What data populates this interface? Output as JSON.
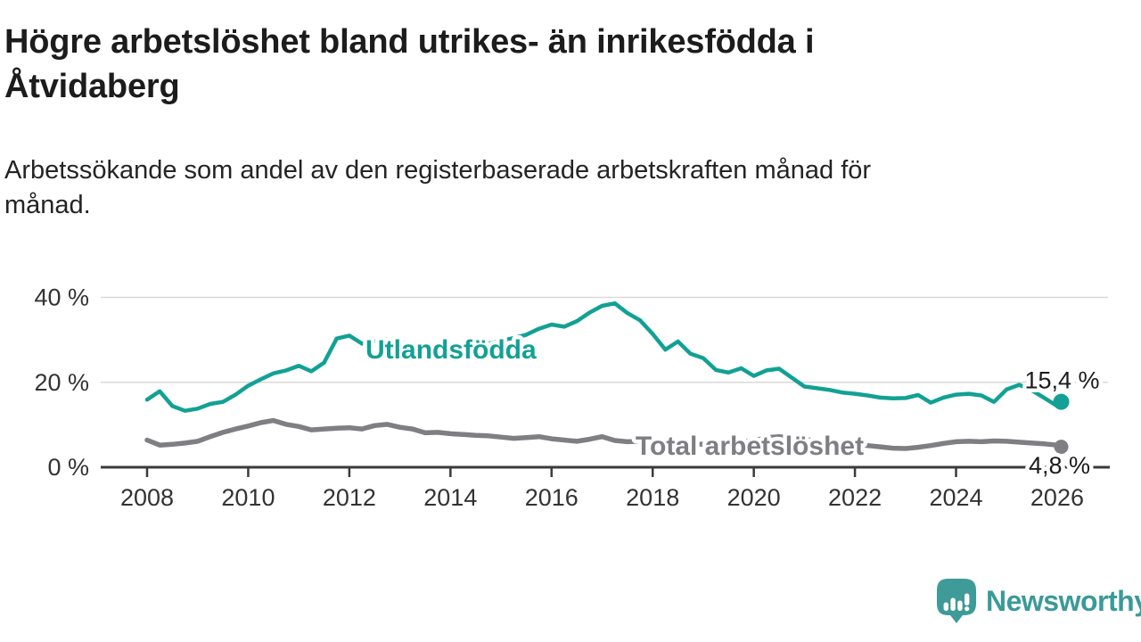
{
  "header": {
    "title_lines": [
      "Högre arbetslöshet bland utrikes- än inrikesfödda i",
      "Åtvidaberg"
    ],
    "subtitle_lines": [
      "Arbetssökande som andel av den registerbaserade arbetskraften månad för",
      "månad."
    ]
  },
  "chart_data": {
    "type": "line",
    "title": "Högre arbetslöshet bland utrikes- än inrikesfödda i Åtvidaberg",
    "subtitle": "Arbetssökande som andel av den registerbaserade arbetskraften månad för månad.",
    "unit": "%",
    "grid": "horizontal-only",
    "legend": "inline-labels-on-lines",
    "x_axis": {
      "ticks": [
        2008,
        2010,
        2012,
        2014,
        2016,
        2018,
        2020,
        2022,
        2024,
        2026
      ],
      "range": [
        2007.1,
        2027.0
      ]
    },
    "y_axis": {
      "ticks": [
        {
          "value": 0,
          "label": "0 %"
        },
        {
          "value": 20,
          "label": "20 %"
        },
        {
          "value": 40,
          "label": "40 %"
        }
      ],
      "range": [
        0,
        42
      ]
    },
    "colors": {
      "axis": "#3b3b3b",
      "gridline": "#d9d9d9",
      "tick_text": "#333333",
      "end_label_text": "#1b1b1b"
    },
    "series": [
      {
        "name": "Utlandsfödda",
        "color": "#12a194",
        "label": {
          "text": "Utlandsfödda",
          "anchor_year": 2012.32,
          "anchor_value": 27.7
        },
        "end_label": "15,4 %",
        "end_value": 15.4,
        "points": [
          [
            2008.0,
            15.9
          ],
          [
            2008.25,
            17.9
          ],
          [
            2008.5,
            14.4
          ],
          [
            2008.75,
            13.3
          ],
          [
            2009.0,
            13.8
          ],
          [
            2009.25,
            14.9
          ],
          [
            2009.5,
            15.4
          ],
          [
            2009.75,
            17.1
          ],
          [
            2010.0,
            19.2
          ],
          [
            2010.25,
            20.7
          ],
          [
            2010.5,
            22.1
          ],
          [
            2010.75,
            22.8
          ],
          [
            2011.0,
            23.9
          ],
          [
            2011.25,
            22.6
          ],
          [
            2011.5,
            24.6
          ],
          [
            2011.75,
            30.3
          ],
          [
            2012.0,
            31.0
          ],
          [
            2012.25,
            29.1
          ],
          [
            2012.5,
            29.7
          ],
          [
            2012.75,
            30.2
          ],
          [
            2013.0,
            29.4
          ],
          [
            2013.25,
            28.9
          ],
          [
            2013.5,
            28.4
          ],
          [
            2013.75,
            28.0
          ],
          [
            2014.0,
            27.8
          ],
          [
            2014.25,
            28.1
          ],
          [
            2014.5,
            28.6
          ],
          [
            2014.75,
            29.1
          ],
          [
            2015.0,
            29.8
          ],
          [
            2015.25,
            30.4
          ],
          [
            2015.5,
            31.2
          ],
          [
            2015.75,
            32.6
          ],
          [
            2016.0,
            33.6
          ],
          [
            2016.25,
            33.1
          ],
          [
            2016.5,
            34.4
          ],
          [
            2016.75,
            36.4
          ],
          [
            2017.0,
            38.0
          ],
          [
            2017.25,
            38.6
          ],
          [
            2017.5,
            36.3
          ],
          [
            2017.75,
            34.6
          ],
          [
            2018.0,
            31.4
          ],
          [
            2018.25,
            27.7
          ],
          [
            2018.5,
            29.6
          ],
          [
            2018.75,
            26.7
          ],
          [
            2019.0,
            25.7
          ],
          [
            2019.25,
            22.9
          ],
          [
            2019.5,
            22.3
          ],
          [
            2019.75,
            23.3
          ],
          [
            2020.0,
            21.5
          ],
          [
            2020.25,
            22.8
          ],
          [
            2020.5,
            23.2
          ],
          [
            2020.75,
            21.1
          ],
          [
            2021.0,
            19.0
          ],
          [
            2021.25,
            18.6
          ],
          [
            2021.5,
            18.2
          ],
          [
            2021.75,
            17.6
          ],
          [
            2022.0,
            17.3
          ],
          [
            2022.25,
            16.9
          ],
          [
            2022.5,
            16.4
          ],
          [
            2022.75,
            16.2
          ],
          [
            2023.0,
            16.3
          ],
          [
            2023.25,
            17.0
          ],
          [
            2023.5,
            15.2
          ],
          [
            2023.75,
            16.4
          ],
          [
            2024.0,
            17.1
          ],
          [
            2024.25,
            17.3
          ],
          [
            2024.5,
            16.9
          ],
          [
            2024.75,
            15.4
          ],
          [
            2025.0,
            18.3
          ],
          [
            2025.25,
            19.4
          ],
          [
            2025.5,
            18.1
          ],
          [
            2025.75,
            16.3
          ],
          [
            2026.0,
            14.4
          ],
          [
            2026.08,
            15.4
          ]
        ]
      },
      {
        "name": "Total arbetslöshet",
        "color": "#7e7e83",
        "label": {
          "text": "Total arbetslöshet",
          "anchor_year": 2017.66,
          "anchor_value": 5.0
        },
        "end_label": "4,8 %",
        "end_value": 4.8,
        "points": [
          [
            2008.0,
            6.4
          ],
          [
            2008.25,
            5.2
          ],
          [
            2008.5,
            5.4
          ],
          [
            2008.75,
            5.7
          ],
          [
            2009.0,
            6.1
          ],
          [
            2009.25,
            7.2
          ],
          [
            2009.5,
            8.2
          ],
          [
            2009.75,
            9.0
          ],
          [
            2010.0,
            9.7
          ],
          [
            2010.25,
            10.5
          ],
          [
            2010.5,
            11.0
          ],
          [
            2010.75,
            10.1
          ],
          [
            2011.0,
            9.6
          ],
          [
            2011.25,
            8.8
          ],
          [
            2011.5,
            9.0
          ],
          [
            2011.75,
            9.2
          ],
          [
            2012.0,
            9.3
          ],
          [
            2012.25,
            9.0
          ],
          [
            2012.5,
            9.8
          ],
          [
            2012.75,
            10.1
          ],
          [
            2013.0,
            9.4
          ],
          [
            2013.25,
            9.0
          ],
          [
            2013.5,
            8.1
          ],
          [
            2013.75,
            8.2
          ],
          [
            2014.0,
            7.9
          ],
          [
            2014.25,
            7.7
          ],
          [
            2014.5,
            7.5
          ],
          [
            2014.75,
            7.4
          ],
          [
            2015.0,
            7.1
          ],
          [
            2015.25,
            6.8
          ],
          [
            2015.5,
            7.0
          ],
          [
            2015.75,
            7.2
          ],
          [
            2016.0,
            6.7
          ],
          [
            2016.25,
            6.4
          ],
          [
            2016.5,
            6.1
          ],
          [
            2016.75,
            6.6
          ],
          [
            2017.0,
            7.2
          ],
          [
            2017.25,
            6.3
          ],
          [
            2017.5,
            6.0
          ],
          [
            2017.75,
            6.1
          ],
          [
            2018.0,
            6.0
          ],
          [
            2018.25,
            5.8
          ],
          [
            2018.5,
            5.6
          ],
          [
            2018.75,
            5.5
          ],
          [
            2019.0,
            5.4
          ],
          [
            2019.25,
            5.6
          ],
          [
            2019.5,
            5.8
          ],
          [
            2019.75,
            6.0
          ],
          [
            2020.0,
            6.3
          ],
          [
            2020.25,
            7.0
          ],
          [
            2020.5,
            7.2
          ],
          [
            2020.75,
            6.9
          ],
          [
            2021.0,
            6.6
          ],
          [
            2021.25,
            6.2
          ],
          [
            2021.5,
            5.9
          ],
          [
            2021.75,
            5.6
          ],
          [
            2022.0,
            5.4
          ],
          [
            2022.25,
            5.1
          ],
          [
            2022.5,
            4.8
          ],
          [
            2022.75,
            4.5
          ],
          [
            2023.0,
            4.4
          ],
          [
            2023.25,
            4.7
          ],
          [
            2023.5,
            5.1
          ],
          [
            2023.75,
            5.6
          ],
          [
            2024.0,
            6.0
          ],
          [
            2024.25,
            6.1
          ],
          [
            2024.5,
            6.0
          ],
          [
            2024.75,
            6.2
          ],
          [
            2025.0,
            6.1
          ],
          [
            2025.25,
            5.9
          ],
          [
            2025.5,
            5.7
          ],
          [
            2025.75,
            5.5
          ],
          [
            2026.0,
            5.2
          ],
          [
            2026.08,
            4.8
          ]
        ]
      }
    ]
  },
  "footer": {
    "brand": "Newsworthy",
    "brand_color": "#3a9a98",
    "logo_icon": "speech-bubble-bar-chart-exclamation"
  }
}
